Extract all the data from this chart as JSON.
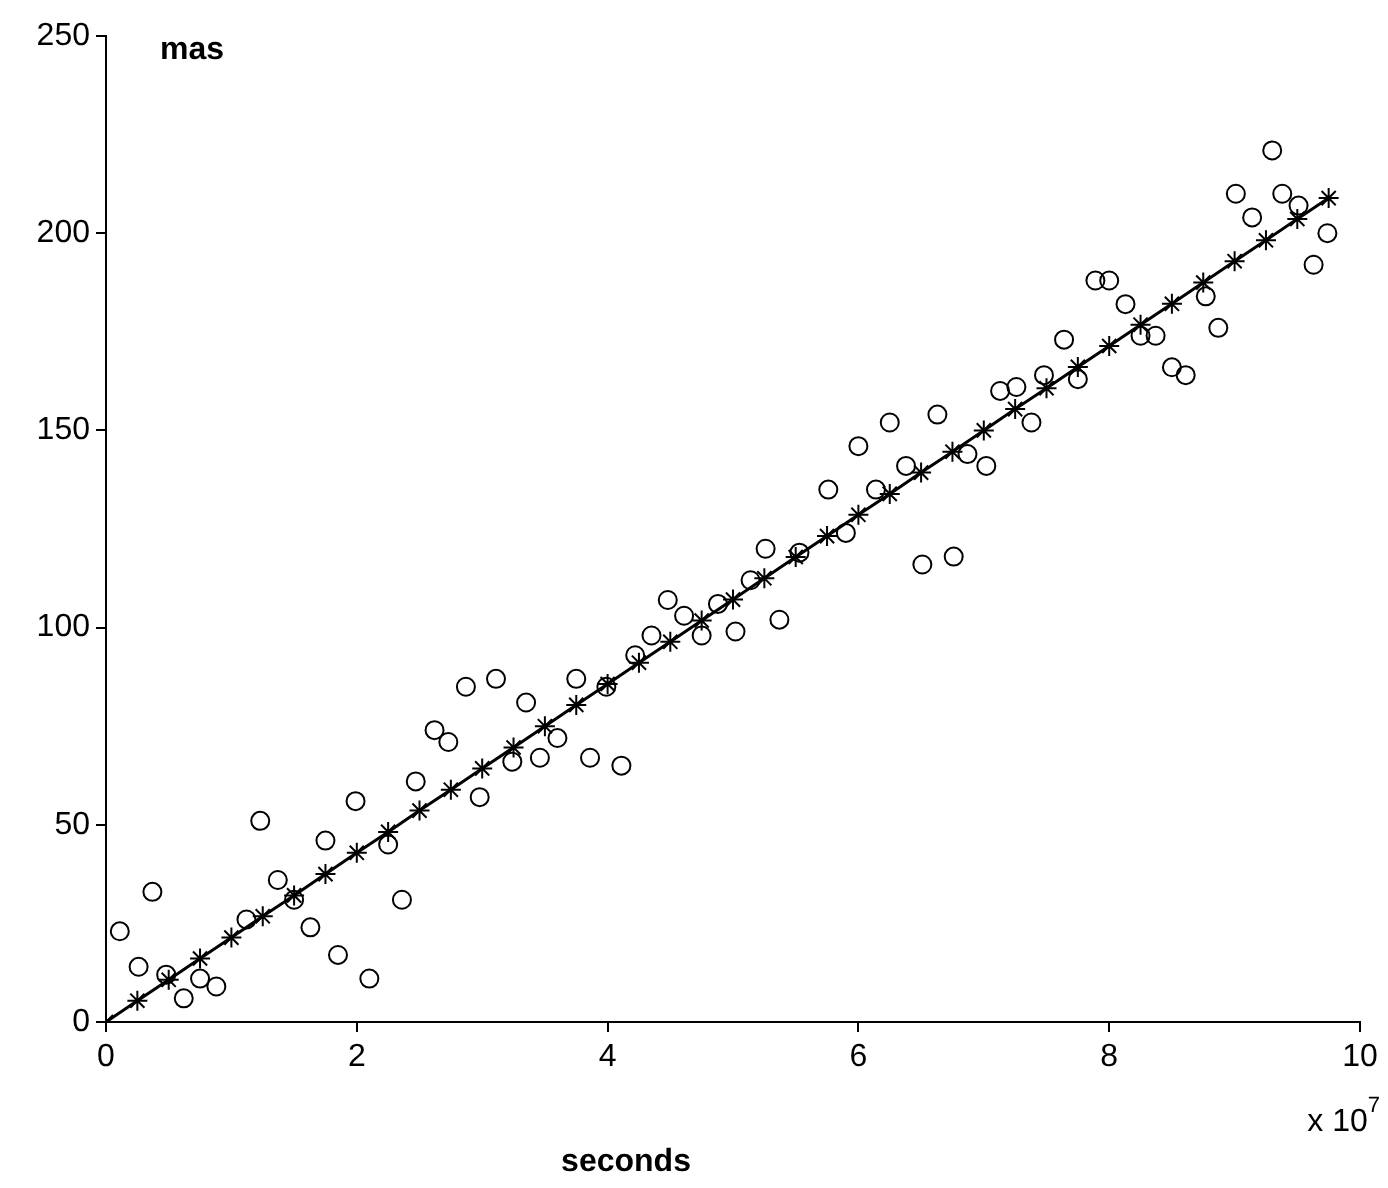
{
  "chart_data": {
    "type": "scatter",
    "xlabel": "seconds",
    "ylabel": "mas",
    "annotations": [
      "x 10$^{7}$"
    ],
    "xlim": [
      0,
      10
    ],
    "xticks": [
      0,
      2,
      4,
      6,
      8,
      10
    ],
    "ylim": [
      0,
      250
    ],
    "yticks": [
      0,
      50,
      100,
      150,
      200,
      250
    ],
    "grid": false,
    "legend": false,
    "series": [
      {
        "type": "scatter",
        "marker": "circle",
        "color": "#000000",
        "x": [
          0.11,
          0.26,
          0.37,
          0.48,
          0.62,
          0.75,
          0.88,
          1.12,
          1.23,
          1.37,
          1.5,
          1.63,
          1.75,
          1.85,
          1.99,
          2.1,
          2.25,
          2.36,
          2.47,
          2.62,
          2.73,
          2.87,
          2.98,
          3.11,
          3.24,
          3.35,
          3.46,
          3.6,
          3.75,
          3.86,
          3.99,
          4.11,
          4.22,
          4.35,
          4.48,
          4.61,
          4.75,
          4.88,
          5.02,
          5.14,
          5.26,
          5.37,
          5.53,
          5.76,
          5.9,
          6.0,
          6.14,
          6.25,
          6.38,
          6.51,
          6.63,
          6.76,
          6.87,
          7.02,
          7.13,
          7.26,
          7.38,
          7.48,
          7.64,
          7.75,
          7.89,
          8.0,
          8.13,
          8.25,
          8.37,
          8.5,
          8.61,
          8.77,
          8.87,
          9.01,
          9.14,
          9.3,
          9.38,
          9.51,
          9.63,
          9.74
        ],
        "values": [
          23,
          14,
          33,
          12,
          6,
          11,
          9,
          26,
          51,
          36,
          31,
          24,
          46,
          17,
          56,
          11,
          45,
          31,
          61,
          74,
          71,
          85,
          57,
          87,
          66,
          81,
          67,
          72,
          87,
          67,
          85,
          65,
          93,
          98,
          107,
          103,
          98,
          106,
          99,
          112,
          120,
          102,
          119,
          135,
          124,
          146,
          135,
          152,
          141,
          116,
          154,
          118,
          144,
          141,
          160,
          161,
          152,
          164,
          173,
          163,
          188,
          188,
          182,
          174,
          174,
          166,
          164,
          184,
          176,
          210,
          204,
          221,
          210,
          207,
          192,
          200
        ]
      },
      {
        "type": "line",
        "marker": "cross",
        "line_style": "solid",
        "color": "#000000",
        "x": [
          0,
          0.25,
          0.5,
          0.75,
          1,
          1.25,
          1.5,
          1.75,
          2,
          2.25,
          2.5,
          2.75,
          3,
          3.25,
          3.5,
          3.75,
          4,
          4.25,
          4.5,
          4.75,
          5,
          5.25,
          5.5,
          5.75,
          6,
          6.25,
          6.5,
          6.75,
          7,
          7.25,
          7.5,
          7.75,
          8,
          8.25,
          8.5,
          8.75,
          9,
          9.25,
          9.5,
          9.75
        ],
        "values": [
          0,
          5.4,
          10.7,
          16.1,
          21.4,
          26.8,
          32.1,
          37.5,
          42.9,
          48.2,
          53.6,
          58.9,
          64.3,
          69.6,
          75,
          80.4,
          85.7,
          91.1,
          96.4,
          101.8,
          107.1,
          112.5,
          117.9,
          123.2,
          128.6,
          133.9,
          139.3,
          144.6,
          150,
          155.4,
          160.7,
          166.1,
          171.4,
          176.8,
          182.1,
          187.5,
          192.9,
          198.2,
          203.6,
          208.9
        ]
      }
    ]
  }
}
